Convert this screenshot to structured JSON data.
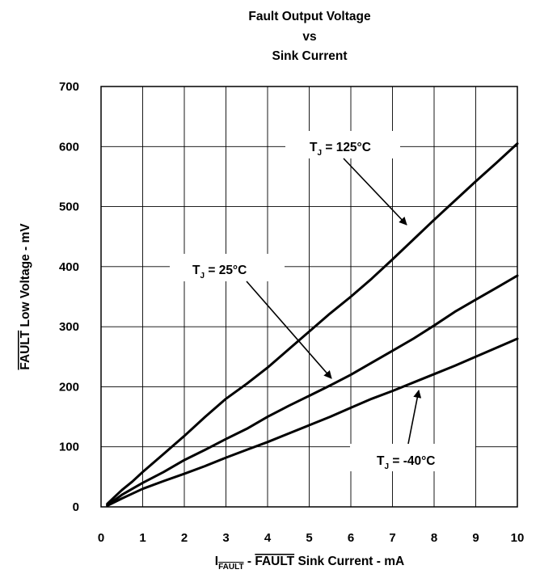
{
  "chart_data": {
    "type": "line",
    "title": [
      "Fault Output Voltage",
      "vs",
      "Sink Current"
    ],
    "xlabel": {
      "prefix": "I",
      "prefix_subscript": "FAULT",
      "overlined": "FAULT",
      "rest": " Sink Current - mA",
      "separator": " - "
    },
    "ylabel": {
      "overlined": "FAULT",
      "rest": " Low Voltage - mV"
    },
    "xlim": [
      0,
      10
    ],
    "ylim": [
      0,
      700
    ],
    "xticks": [
      "0",
      "1",
      "2",
      "3",
      "4",
      "5",
      "6",
      "7",
      "8",
      "9",
      "10"
    ],
    "yticks": [
      "0",
      "100",
      "200",
      "300",
      "400",
      "500",
      "600",
      "700"
    ],
    "grid": true,
    "series": [
      {
        "name": "TJ = 125°C",
        "label": {
          "main": "T",
          "sub": "J",
          "text": " = 125°C"
        },
        "x": [
          0.15,
          0.3,
          0.5,
          0.75,
          1.0,
          1.5,
          2.0,
          2.5,
          3.0,
          3.5,
          4.0,
          4.5,
          5.0,
          5.5,
          6.0,
          6.5,
          7.0,
          7.5,
          8.0,
          8.5,
          9.0,
          9.5,
          10.0
        ],
        "y": [
          5,
          15,
          28,
          42,
          58,
          88,
          118,
          150,
          180,
          205,
          232,
          262,
          292,
          322,
          350,
          380,
          412,
          445,
          478,
          510,
          542,
          573,
          605
        ]
      },
      {
        "name": "TJ = 25°C",
        "label": {
          "main": "T",
          "sub": "J",
          "text": " = 25°C"
        },
        "x": [
          0.15,
          0.3,
          0.5,
          0.75,
          1.0,
          1.5,
          2.0,
          2.5,
          3.0,
          3.5,
          4.0,
          4.5,
          5.0,
          5.5,
          6.0,
          6.5,
          7.0,
          7.5,
          8.0,
          8.5,
          9.0,
          9.5,
          10.0
        ],
        "y": [
          3,
          10,
          20,
          30,
          40,
          58,
          78,
          95,
          113,
          130,
          150,
          168,
          185,
          202,
          220,
          240,
          260,
          280,
          302,
          325,
          345,
          365,
          385
        ]
      },
      {
        "name": "TJ = -40°C",
        "label": {
          "main": "T",
          "sub": "J",
          "text": " = -40°C"
        },
        "x": [
          0.15,
          0.3,
          0.5,
          0.75,
          1.0,
          1.5,
          2.0,
          2.5,
          3.0,
          3.5,
          4.0,
          4.5,
          5.0,
          5.5,
          6.0,
          6.5,
          7.0,
          7.5,
          8.0,
          8.5,
          9.0,
          9.5,
          10.0
        ],
        "y": [
          2,
          7,
          14,
          22,
          30,
          43,
          55,
          68,
          82,
          95,
          108,
          122,
          136,
          150,
          165,
          180,
          193,
          207,
          221,
          235,
          250,
          265,
          280
        ]
      }
    ],
    "colors": {
      "line": "#000000",
      "grid": "#000000",
      "background": "#ffffff"
    }
  }
}
